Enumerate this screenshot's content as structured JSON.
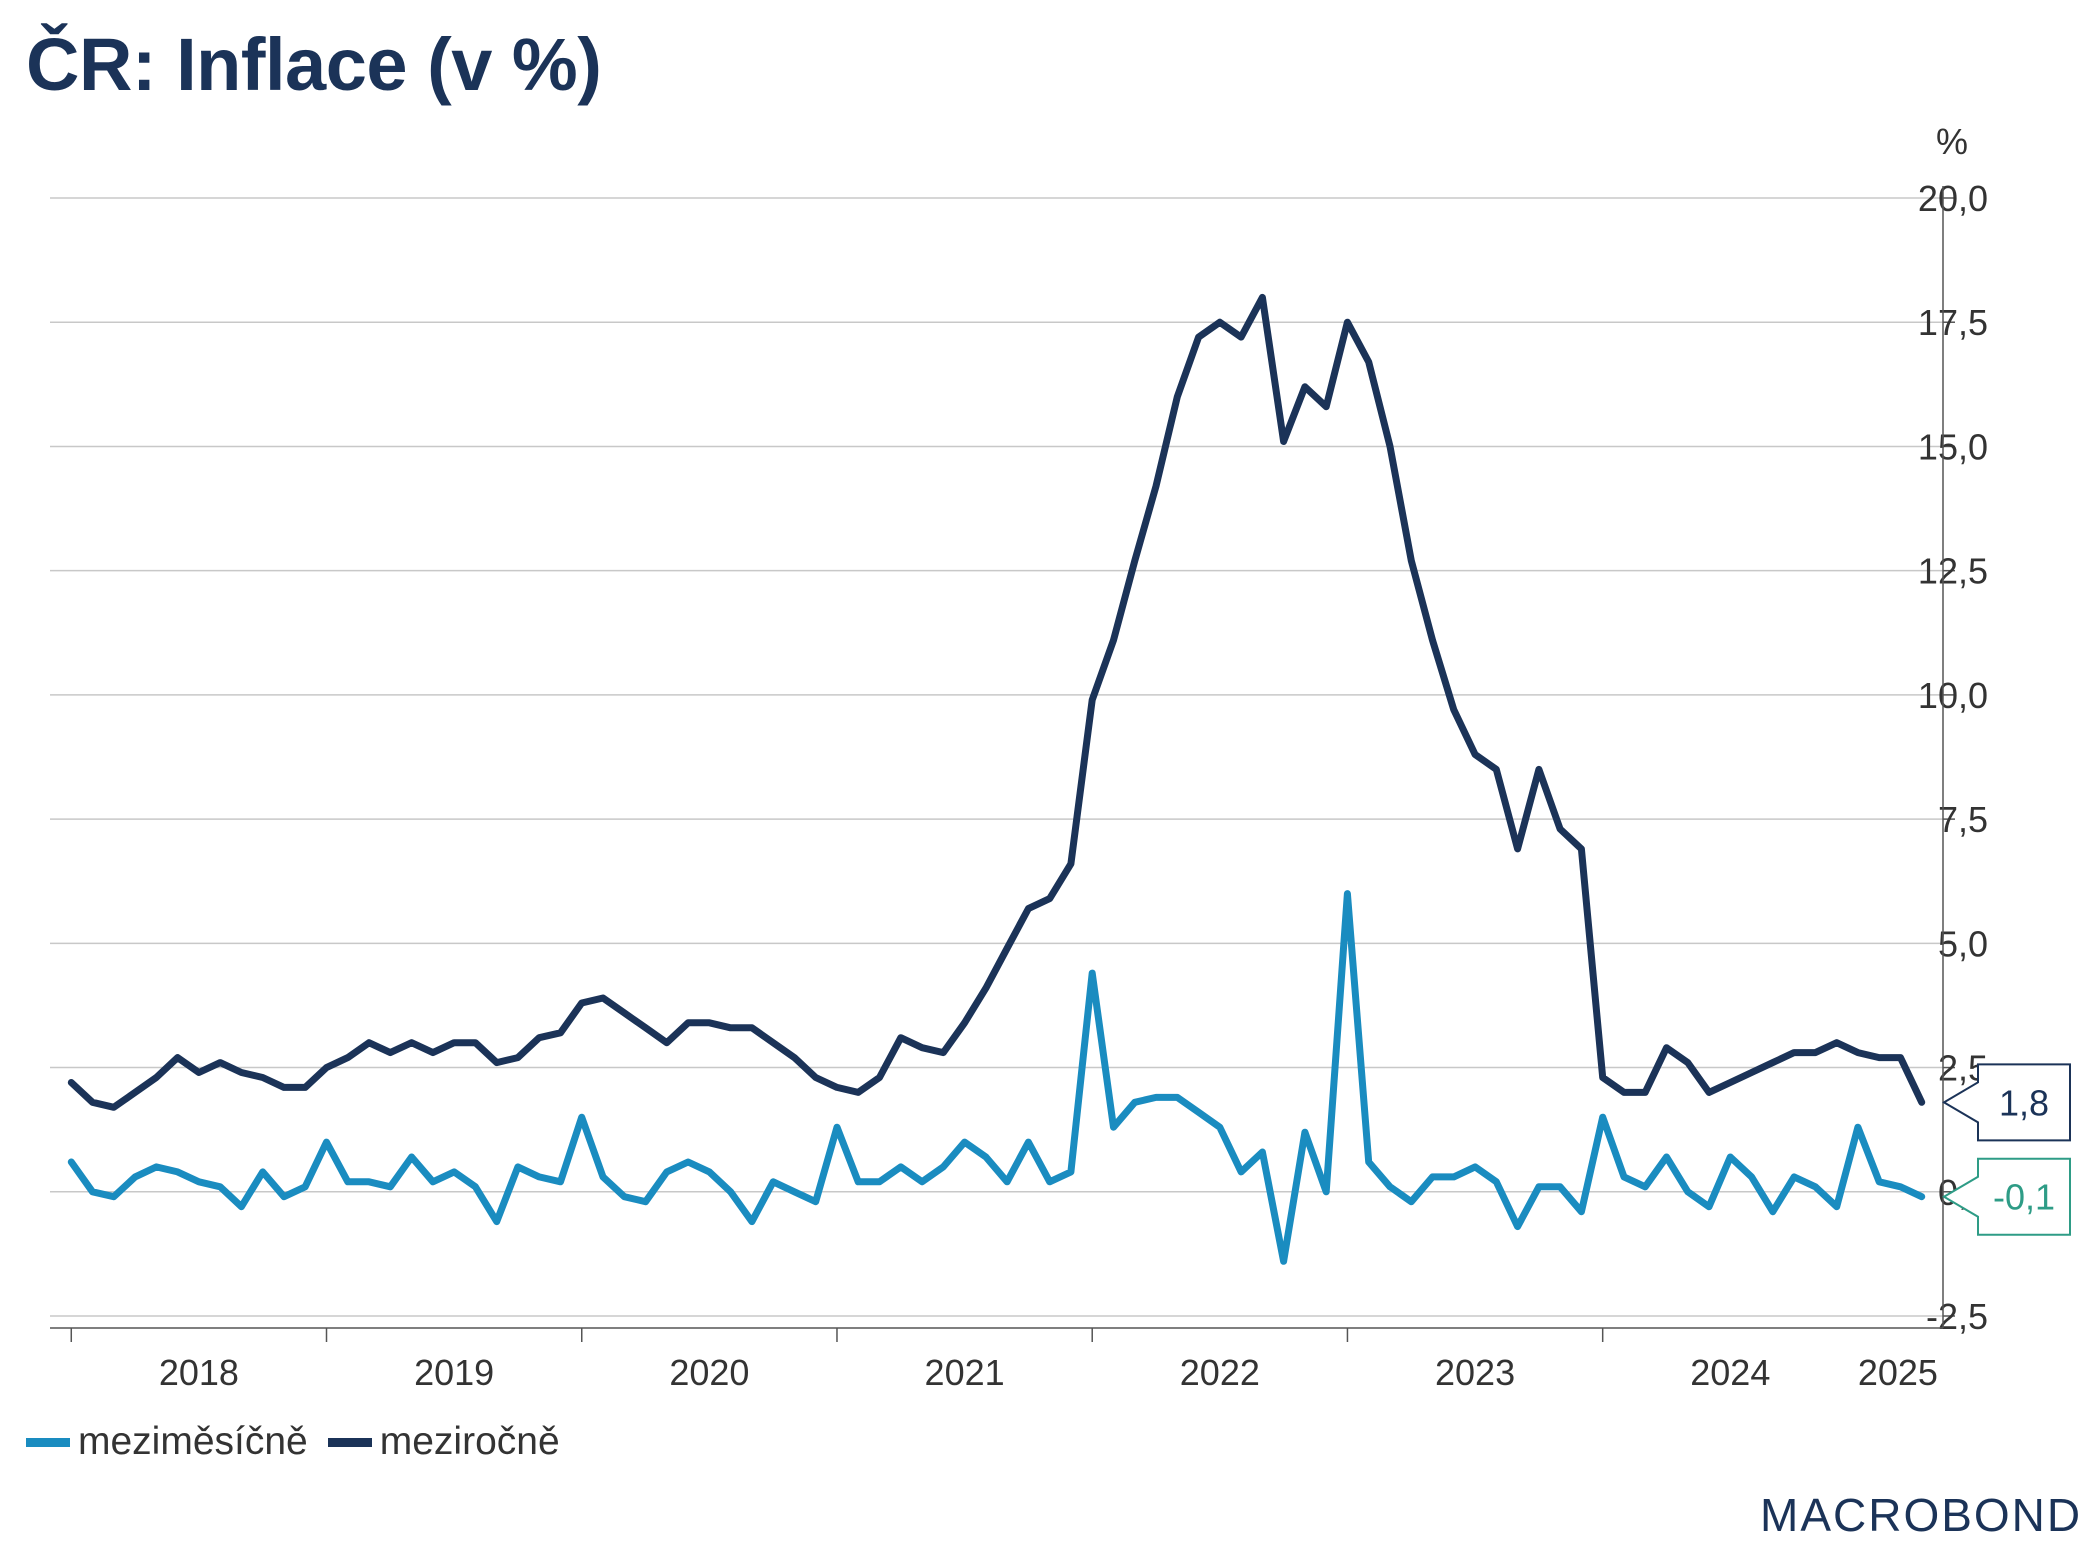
{
  "title": "ČR: Inflace (v %)",
  "unit_label": "%",
  "brand": "MACROBOND",
  "colors": {
    "monthly": "#1a8cc0",
    "yearly": "#1b3358",
    "grid": "#c8c8c8",
    "axis": "#555555",
    "title": "#1b3358"
  },
  "chart_data": {
    "type": "line",
    "title": "ČR: Inflace (v %)",
    "xlabel": "",
    "ylabel": "%",
    "ylim": [
      -2.5,
      20
    ],
    "xlim": [
      "2017-12",
      "2025-05"
    ],
    "x_ticks": [
      "2018",
      "2019",
      "2020",
      "2021",
      "2022",
      "2023",
      "2024",
      "2025"
    ],
    "y_ticks": [
      "-2,5",
      "0,0",
      "2,5",
      "5,0",
      "7,5",
      "10,0",
      "12,5",
      "15,0",
      "17,5",
      "20,0"
    ],
    "grid": true,
    "legend_position": "bottom-left",
    "start_month": "2018-01",
    "series": [
      {
        "name": "meziměsíčně",
        "end_label": "-0,1",
        "values": [
          0.6,
          0.0,
          -0.1,
          0.3,
          0.5,
          0.4,
          0.2,
          0.1,
          -0.3,
          0.4,
          -0.1,
          0.1,
          1.0,
          0.2,
          0.2,
          0.1,
          0.7,
          0.2,
          0.4,
          0.1,
          -0.6,
          0.5,
          0.3,
          0.2,
          1.5,
          0.3,
          -0.1,
          -0.2,
          0.4,
          0.6,
          0.4,
          0.0,
          -0.6,
          0.2,
          0.0,
          -0.2,
          1.3,
          0.2,
          0.2,
          0.5,
          0.2,
          0.5,
          1.0,
          0.7,
          0.2,
          1.0,
          0.2,
          0.4,
          4.4,
          1.3,
          1.8,
          1.9,
          1.9,
          1.6,
          1.3,
          0.4,
          0.8,
          -1.4,
          1.2,
          0.0,
          6.0,
          0.6,
          0.1,
          -0.2,
          0.3,
          0.3,
          0.5,
          0.2,
          -0.7,
          0.1,
          0.1,
          -0.4,
          1.5,
          0.3,
          0.1,
          0.7,
          0.0,
          -0.3,
          0.7,
          0.3,
          -0.4,
          0.3,
          0.1,
          -0.3,
          1.3,
          0.2,
          0.1,
          -0.1
        ]
      },
      {
        "name": "meziročně",
        "end_label": "1,8",
        "values": [
          2.2,
          1.8,
          1.7,
          2.0,
          2.3,
          2.7,
          2.4,
          2.6,
          2.4,
          2.3,
          2.1,
          2.1,
          2.5,
          2.7,
          3.0,
          2.8,
          3.0,
          2.8,
          3.0,
          3.0,
          2.6,
          2.7,
          3.1,
          3.2,
          3.8,
          3.9,
          3.6,
          3.3,
          3.0,
          3.4,
          3.4,
          3.3,
          3.3,
          3.0,
          2.7,
          2.3,
          2.1,
          2.0,
          2.3,
          3.1,
          2.9,
          2.8,
          3.4,
          4.1,
          4.9,
          5.7,
          5.9,
          6.6,
          9.9,
          11.1,
          12.7,
          14.2,
          16.0,
          17.2,
          17.5,
          17.2,
          18.0,
          15.1,
          16.2,
          15.8,
          17.5,
          16.7,
          15.0,
          12.7,
          11.1,
          9.7,
          8.8,
          8.5,
          6.9,
          8.5,
          7.3,
          6.9,
          2.3,
          2.0,
          2.0,
          2.9,
          2.6,
          2.0,
          2.2,
          2.4,
          2.6,
          2.8,
          2.8,
          3.0,
          2.8,
          2.7,
          2.7,
          1.8
        ]
      }
    ]
  },
  "legend": [
    {
      "label": "meziměsíčně"
    },
    {
      "label": "meziročně"
    }
  ]
}
